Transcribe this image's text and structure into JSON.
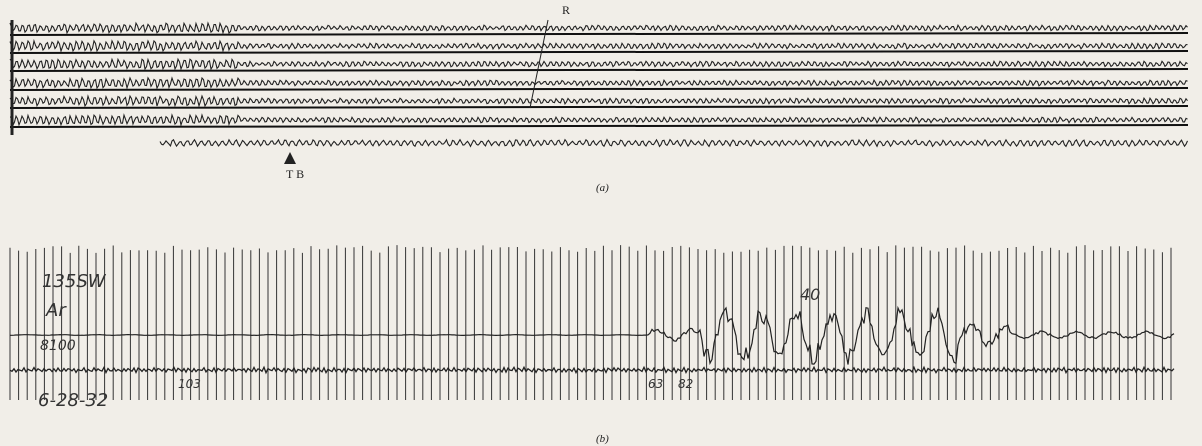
{
  "panel_a": {
    "label_r": "R",
    "label_tb": "T B",
    "caption": "(a)"
  },
  "panel_b": {
    "station": "135SW",
    "component": "Ar",
    "number": "8100",
    "date": "6-28-32",
    "mark_top": "40",
    "mark_1": "103",
    "mark_2": "63",
    "mark_3": "82",
    "caption": "(b)"
  }
}
